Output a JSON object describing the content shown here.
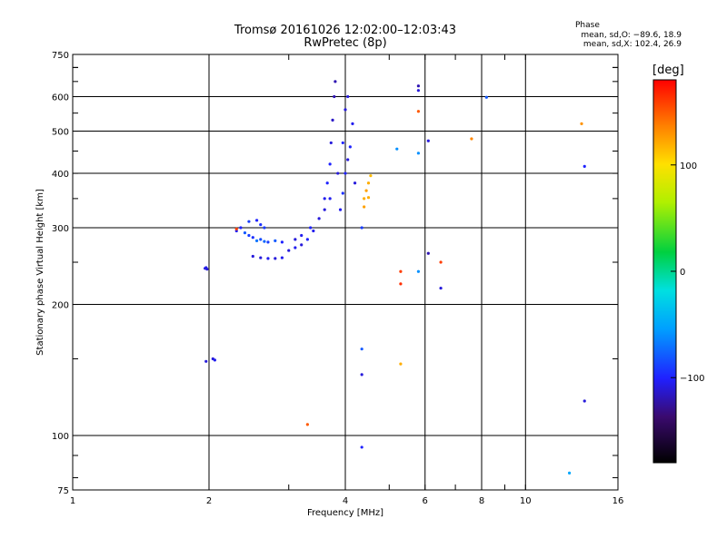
{
  "header": {
    "title_line1": "Tromsø 20161026 12:02:00–12:03:43",
    "title_line2": "RwPretec (8p)",
    "phase_title": "Phase",
    "phase_o": "mean, sd,O: −89.6, 18.9",
    "phase_x": "mean, sd,X: 102.4, 26.9"
  },
  "colorbar": {
    "unit": "[deg]",
    "ticks": [
      "100",
      "0",
      "−100"
    ],
    "tick_values": [
      100,
      0,
      -100
    ],
    "range": [
      -180,
      180
    ]
  },
  "chart_data": {
    "type": "scatter",
    "title": "Tromsø 20161026 12:02:00–12:03:43",
    "subtitle": "RwPretec (8p)",
    "xlabel": "Frequency [MHz]",
    "ylabel": "Stationary phase Virtual Height [km]",
    "xscale": "log",
    "yscale": "log",
    "xlim": [
      1,
      16
    ],
    "ylim": [
      75,
      750
    ],
    "x_ticks": [
      "1",
      "2",
      "4",
      "6",
      "8",
      "10",
      "16"
    ],
    "x_tick_values": [
      1,
      2,
      4,
      6,
      8,
      10,
      16
    ],
    "y_ticks": [
      "750",
      "600",
      "500",
      "400",
      "300",
      "200",
      "100",
      "75"
    ],
    "y_tick_values": [
      750,
      600,
      500,
      400,
      300,
      200,
      100,
      75
    ],
    "grid": true,
    "color_encoding": "phase [deg]",
    "series": [
      {
        "points": [
          [
            1.96,
            242,
            -110
          ],
          [
            1.97,
            243,
            -105
          ],
          [
            1.98,
            241,
            -110
          ],
          [
            1.97,
            148,
            -110
          ],
          [
            2.04,
            150,
            -110
          ],
          [
            2.06,
            149,
            -105
          ],
          [
            2.3,
            295,
            -105
          ],
          [
            2.35,
            300,
            -100
          ],
          [
            2.4,
            292,
            -80
          ],
          [
            2.45,
            288,
            -90
          ],
          [
            2.5,
            285,
            -95
          ],
          [
            2.55,
            280,
            -70
          ],
          [
            2.6,
            282,
            -85
          ],
          [
            2.65,
            279,
            -75
          ],
          [
            2.7,
            278,
            -90
          ],
          [
            2.8,
            280,
            -80
          ],
          [
            2.9,
            278,
            -100
          ],
          [
            2.55,
            312,
            -100
          ],
          [
            2.6,
            305,
            -95
          ],
          [
            2.65,
            300,
            -90
          ],
          [
            2.45,
            310,
            -90
          ],
          [
            2.3,
            298,
            160
          ],
          [
            2.5,
            258,
            -110
          ],
          [
            2.6,
            256,
            -110
          ],
          [
            2.7,
            255,
            -105
          ],
          [
            2.8,
            255,
            -110
          ],
          [
            2.9,
            256,
            -105
          ],
          [
            3.0,
            266,
            -110
          ],
          [
            3.1,
            270,
            -105
          ],
          [
            3.2,
            274,
            -110
          ],
          [
            3.3,
            282,
            -100
          ],
          [
            3.4,
            295,
            -105
          ],
          [
            3.5,
            315,
            -110
          ],
          [
            3.6,
            350,
            -105
          ],
          [
            3.65,
            380,
            -100
          ],
          [
            3.7,
            420,
            -100
          ],
          [
            3.72,
            470,
            -110
          ],
          [
            3.75,
            530,
            -115
          ],
          [
            3.78,
            600,
            -120
          ],
          [
            3.8,
            650,
            -120
          ],
          [
            3.1,
            282,
            -110
          ],
          [
            3.2,
            288,
            -105
          ],
          [
            3.35,
            300,
            -100
          ],
          [
            3.6,
            330,
            -110
          ],
          [
            3.7,
            350,
            -105
          ],
          [
            3.9,
            330,
            -105
          ],
          [
            3.95,
            360,
            -95
          ],
          [
            4.0,
            400,
            -100
          ],
          [
            4.05,
            430,
            -110
          ],
          [
            4.1,
            460,
            -100
          ],
          [
            4.15,
            520,
            -105
          ],
          [
            4.05,
            600,
            -110
          ],
          [
            3.85,
            400,
            -110
          ],
          [
            3.95,
            470,
            -100
          ],
          [
            4.2,
            380,
            -110
          ],
          [
            4.0,
            560,
            -110
          ],
          [
            4.4,
            350,
            120
          ],
          [
            4.45,
            365,
            125
          ],
          [
            4.5,
            380,
            120
          ],
          [
            4.55,
            395,
            115
          ],
          [
            4.4,
            335,
            125
          ],
          [
            4.5,
            352,
            120
          ],
          [
            4.35,
            300,
            -90
          ],
          [
            4.35,
            158,
            -80
          ],
          [
            4.35,
            138,
            -110
          ],
          [
            4.35,
            94,
            -100
          ],
          [
            3.3,
            106,
            150
          ],
          [
            5.3,
            238,
            160
          ],
          [
            5.3,
            223,
            165
          ],
          [
            5.3,
            146,
            120
          ],
          [
            5.2,
            455,
            -60
          ],
          [
            5.8,
            238,
            -60
          ],
          [
            5.8,
            445,
            -60
          ],
          [
            5.8,
            555,
            150
          ],
          [
            5.8,
            620,
            -110
          ],
          [
            5.8,
            635,
            -120
          ],
          [
            6.1,
            475,
            -110
          ],
          [
            6.1,
            262,
            -120
          ],
          [
            6.5,
            250,
            160
          ],
          [
            6.5,
            218,
            -110
          ],
          [
            7.6,
            480,
            135
          ],
          [
            8.2,
            598,
            -80
          ],
          [
            13.3,
            520,
            130
          ],
          [
            13.5,
            415,
            -100
          ],
          [
            13.5,
            120,
            -110
          ],
          [
            12.5,
            82,
            -50
          ]
        ]
      }
    ]
  }
}
